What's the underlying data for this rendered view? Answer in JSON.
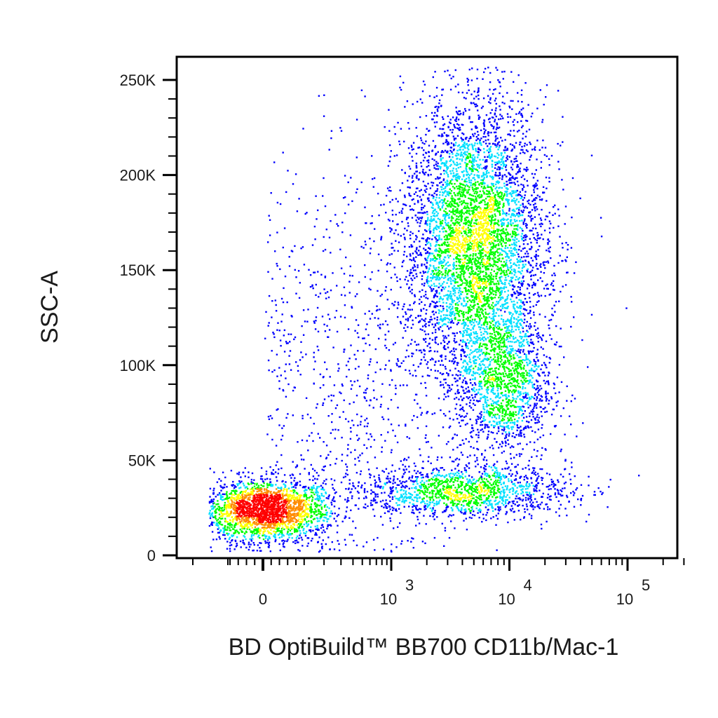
{
  "chart_data": {
    "type": "scatter",
    "title": "",
    "xlabel": "BD OptiBuild™ BB700 CD11b/Mac-1",
    "ylabel": "SSC-A",
    "x_scale": "biexponential",
    "y_scale": "linear",
    "ylim": [
      -8000,
      262144
    ],
    "y_ticks": [
      {
        "value": 0,
        "label": "0"
      },
      {
        "value": 50000,
        "label": "50K"
      },
      {
        "value": 100000,
        "label": "100K"
      },
      {
        "value": 150000,
        "label": "150K"
      },
      {
        "value": 200000,
        "label": "200K"
      },
      {
        "value": 250000,
        "label": "250K"
      }
    ],
    "x_ticks": [
      {
        "value": 0,
        "label": "0",
        "exp": ""
      },
      {
        "value": 1000,
        "label": "10",
        "exp": "3"
      },
      {
        "value": 10000,
        "label": "10",
        "exp": "4"
      },
      {
        "value": 100000,
        "label": "10",
        "exp": "5"
      }
    ],
    "color_scale": [
      "#0000ff",
      "#00e0ff",
      "#00ff00",
      "#ffff00",
      "#ff8c00",
      "#ff0000"
    ],
    "populations": [
      {
        "name": "CD11b-negative low-SSC cluster",
        "x_center": 0,
        "x_spread": 100,
        "y_center": 24000,
        "y_spread": 8000,
        "share": 0.22,
        "density": "high"
      },
      {
        "name": "CD11b-positive low-SSC band",
        "x_center": 4000,
        "x_spread_log10": 0.45,
        "y_center": 34000,
        "y_spread": 7000,
        "share": 0.13,
        "density": "medium"
      },
      {
        "name": "CD11b-positive high-SSC cluster",
        "x_center": 5000,
        "x_spread_log10": 0.3,
        "y_center": 165000,
        "y_spread": 38000,
        "share": 0.46,
        "density": "medium"
      },
      {
        "name": "CD11b-positive intermediate-SSC cluster",
        "x_center": 9000,
        "x_spread_log10": 0.2,
        "y_center": 90000,
        "y_spread": 20000,
        "share": 0.12,
        "density": "low"
      },
      {
        "name": "scattered events",
        "x_center": 300,
        "x_spread_log10": 0.6,
        "y_center": 100000,
        "y_spread": 55000,
        "share": 0.07,
        "density": "sparse"
      }
    ],
    "grid": false,
    "legend": "none"
  }
}
